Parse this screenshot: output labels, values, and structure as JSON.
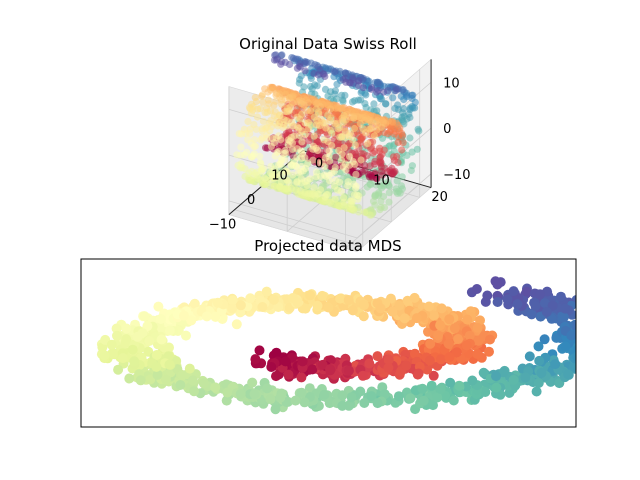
{
  "figure": {
    "background": "#ffffff"
  },
  "chart_data": [
    {
      "type": "scatter3d",
      "title": "Original Data Swiss Roll",
      "xlabel": "",
      "ylabel": "",
      "zlabel": "",
      "xlim": [
        -12,
        14
      ],
      "ylim": [
        0,
        22
      ],
      "zlim": [
        -13,
        15
      ],
      "x_ticks": [
        "−10",
        "0",
        "10"
      ],
      "y_ticks": [
        "0",
        "10",
        "20"
      ],
      "z_ticks": [
        "−10",
        "0",
        "10"
      ],
      "x_tick_values": [
        -10,
        0,
        10
      ],
      "y_tick_values": [
        0,
        10,
        20
      ],
      "z_tick_values": [
        -10,
        0,
        10
      ],
      "grid": true,
      "colormap": "Spectral",
      "t_range": [
        4.7,
        14.1
      ],
      "height_range": [
        0,
        21
      ],
      "n_points": 1500,
      "point_alpha": 0.55
    },
    {
      "type": "scatter",
      "title": "Projected data MDS",
      "xlabel": "",
      "ylabel": "",
      "xlim": [
        -15.5,
        15.5
      ],
      "ylim": [
        -10.4,
        10.4
      ],
      "x_ticks": [],
      "y_ticks": [],
      "grid": false,
      "colormap": "Spectral",
      "t_range": [
        4.7,
        14.1
      ],
      "spiral": {
        "x_scale": 1.5,
        "y_scale": 0.75,
        "rotation_deg": -35,
        "jitter": 0.9
      },
      "n_points": 1500
    }
  ]
}
